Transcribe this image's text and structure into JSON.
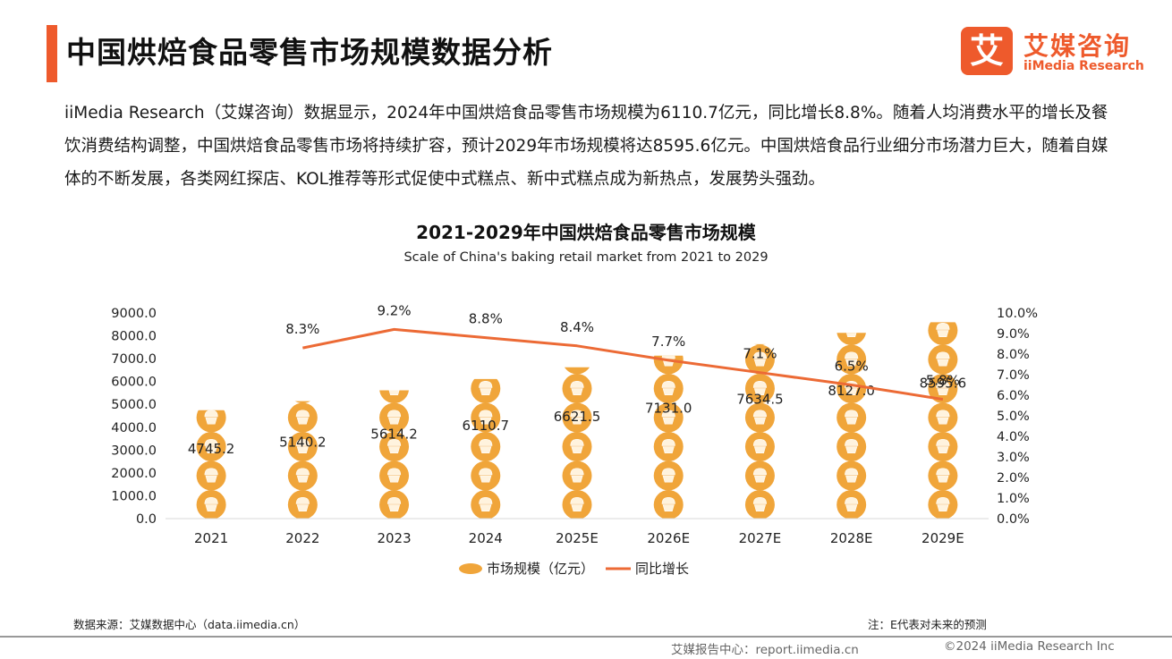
{
  "header": {
    "title": "中国烘焙食品零售市场规模数据分析",
    "logo_mark": "艾",
    "logo_cn": "艾媒咨询",
    "logo_en": "iiMedia Research"
  },
  "intro": "iiMedia Research（艾媒咨询）数据显示，2024年中国烘焙食品零售市场规模为6110.7亿元，同比增长8.8%。随着人均消费水平的增长及餐饮消费结构调整，中国烘焙食品零售市场将持续扩容，预计2029年市场规模将达8595.6亿元。中国烘焙食品行业细分市场潜力巨大，随着自媒体的不断发展，各类网红探店、KOL推荐等形式促使中式糕点、新中式糕点成为新热点，发展势头强劲。",
  "chart_data": {
    "type": "bar",
    "title": "2021-2029年中国烘焙食品零售市场规模",
    "subtitle": "Scale of China's baking retail market from 2021 to 2029",
    "categories": [
      "2021",
      "2022",
      "2023",
      "2024",
      "2025E",
      "2026E",
      "2027E",
      "2028E",
      "2029E"
    ],
    "series": [
      {
        "name": "市场规模（亿元）",
        "type": "bar",
        "axis": "left",
        "values": [
          4745.2,
          5140.2,
          5614.2,
          6110.7,
          6621.5,
          7131.0,
          7634.5,
          8127.0,
          8595.6
        ],
        "labels": [
          "4745.2",
          "5140.2",
          "5614.2",
          "6110.7",
          "6621.5",
          "7131.0",
          "7634.5",
          "8127.0",
          "8595.6"
        ],
        "color": "#f0a53a"
      },
      {
        "name": "同比增长",
        "type": "line",
        "axis": "right",
        "values": [
          null,
          8.3,
          9.2,
          8.8,
          8.4,
          7.7,
          7.1,
          6.5,
          5.8
        ],
        "labels": [
          "",
          "8.3%",
          "9.2%",
          "8.8%",
          "8.4%",
          "7.7%",
          "7.1%",
          "6.5%",
          "5.8%"
        ],
        "color": "#ec6a35"
      }
    ],
    "yleft_ticks": [
      "0.0",
      "1000.0",
      "2000.0",
      "3000.0",
      "4000.0",
      "5000.0",
      "6000.0",
      "7000.0",
      "8000.0",
      "9000.0"
    ],
    "yright_ticks": [
      "0.0%",
      "1.0%",
      "2.0%",
      "3.0%",
      "4.0%",
      "5.0%",
      "6.0%",
      "7.0%",
      "8.0%",
      "9.0%",
      "10.0%"
    ],
    "yleft_lim": [
      0,
      9000
    ],
    "yright_lim": [
      0,
      10
    ],
    "grid": false,
    "legend": "bottom"
  },
  "footer": {
    "source": "数据来源：艾媒数据中心（data.iimedia.cn）",
    "note": "注：E代表对未来的预测",
    "site": "艾媒报告中心：report.iimedia.cn",
    "copyright": "©2024  iiMedia Research  Inc"
  },
  "colors": {
    "accent": "#ee5a2c",
    "bar": "#f0a53a",
    "line": "#ec6a35"
  }
}
